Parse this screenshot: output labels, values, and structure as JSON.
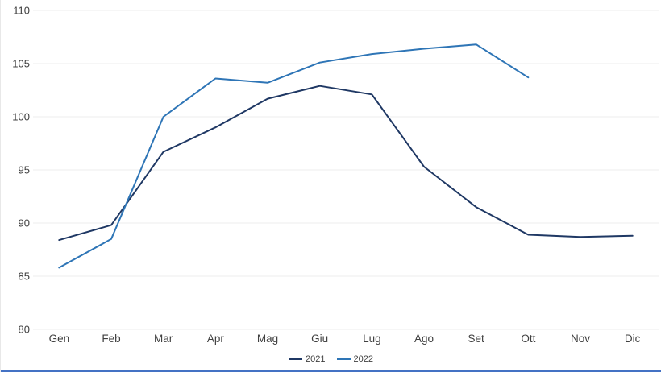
{
  "chart_data": {
    "type": "line",
    "title": "",
    "xlabel": "",
    "ylabel": "",
    "categories": [
      "Gen",
      "Feb",
      "Mar",
      "Apr",
      "Mag",
      "Giu",
      "Lug",
      "Ago",
      "Set",
      "Ott",
      "Nov",
      "Dic"
    ],
    "series": [
      {
        "name": "2021",
        "color": "#1f3864",
        "values": [
          88.4,
          89.8,
          96.7,
          99.0,
          101.7,
          102.9,
          102.1,
          95.3,
          91.5,
          88.9,
          88.7,
          88.8
        ]
      },
      {
        "name": "2022",
        "color": "#2e75b6",
        "values": [
          85.8,
          88.5,
          100.0,
          103.6,
          103.2,
          105.1,
          105.9,
          106.4,
          106.8,
          103.7,
          null,
          null
        ]
      }
    ],
    "ylim": [
      80,
      110
    ],
    "ytick_step": 5,
    "yticks": [
      "80",
      "85",
      "90",
      "95",
      "100",
      "105",
      "110"
    ],
    "grid": true,
    "gridline_color": "#ededed",
    "tick_label_color": "#404040",
    "legend_position": "bottom"
  }
}
